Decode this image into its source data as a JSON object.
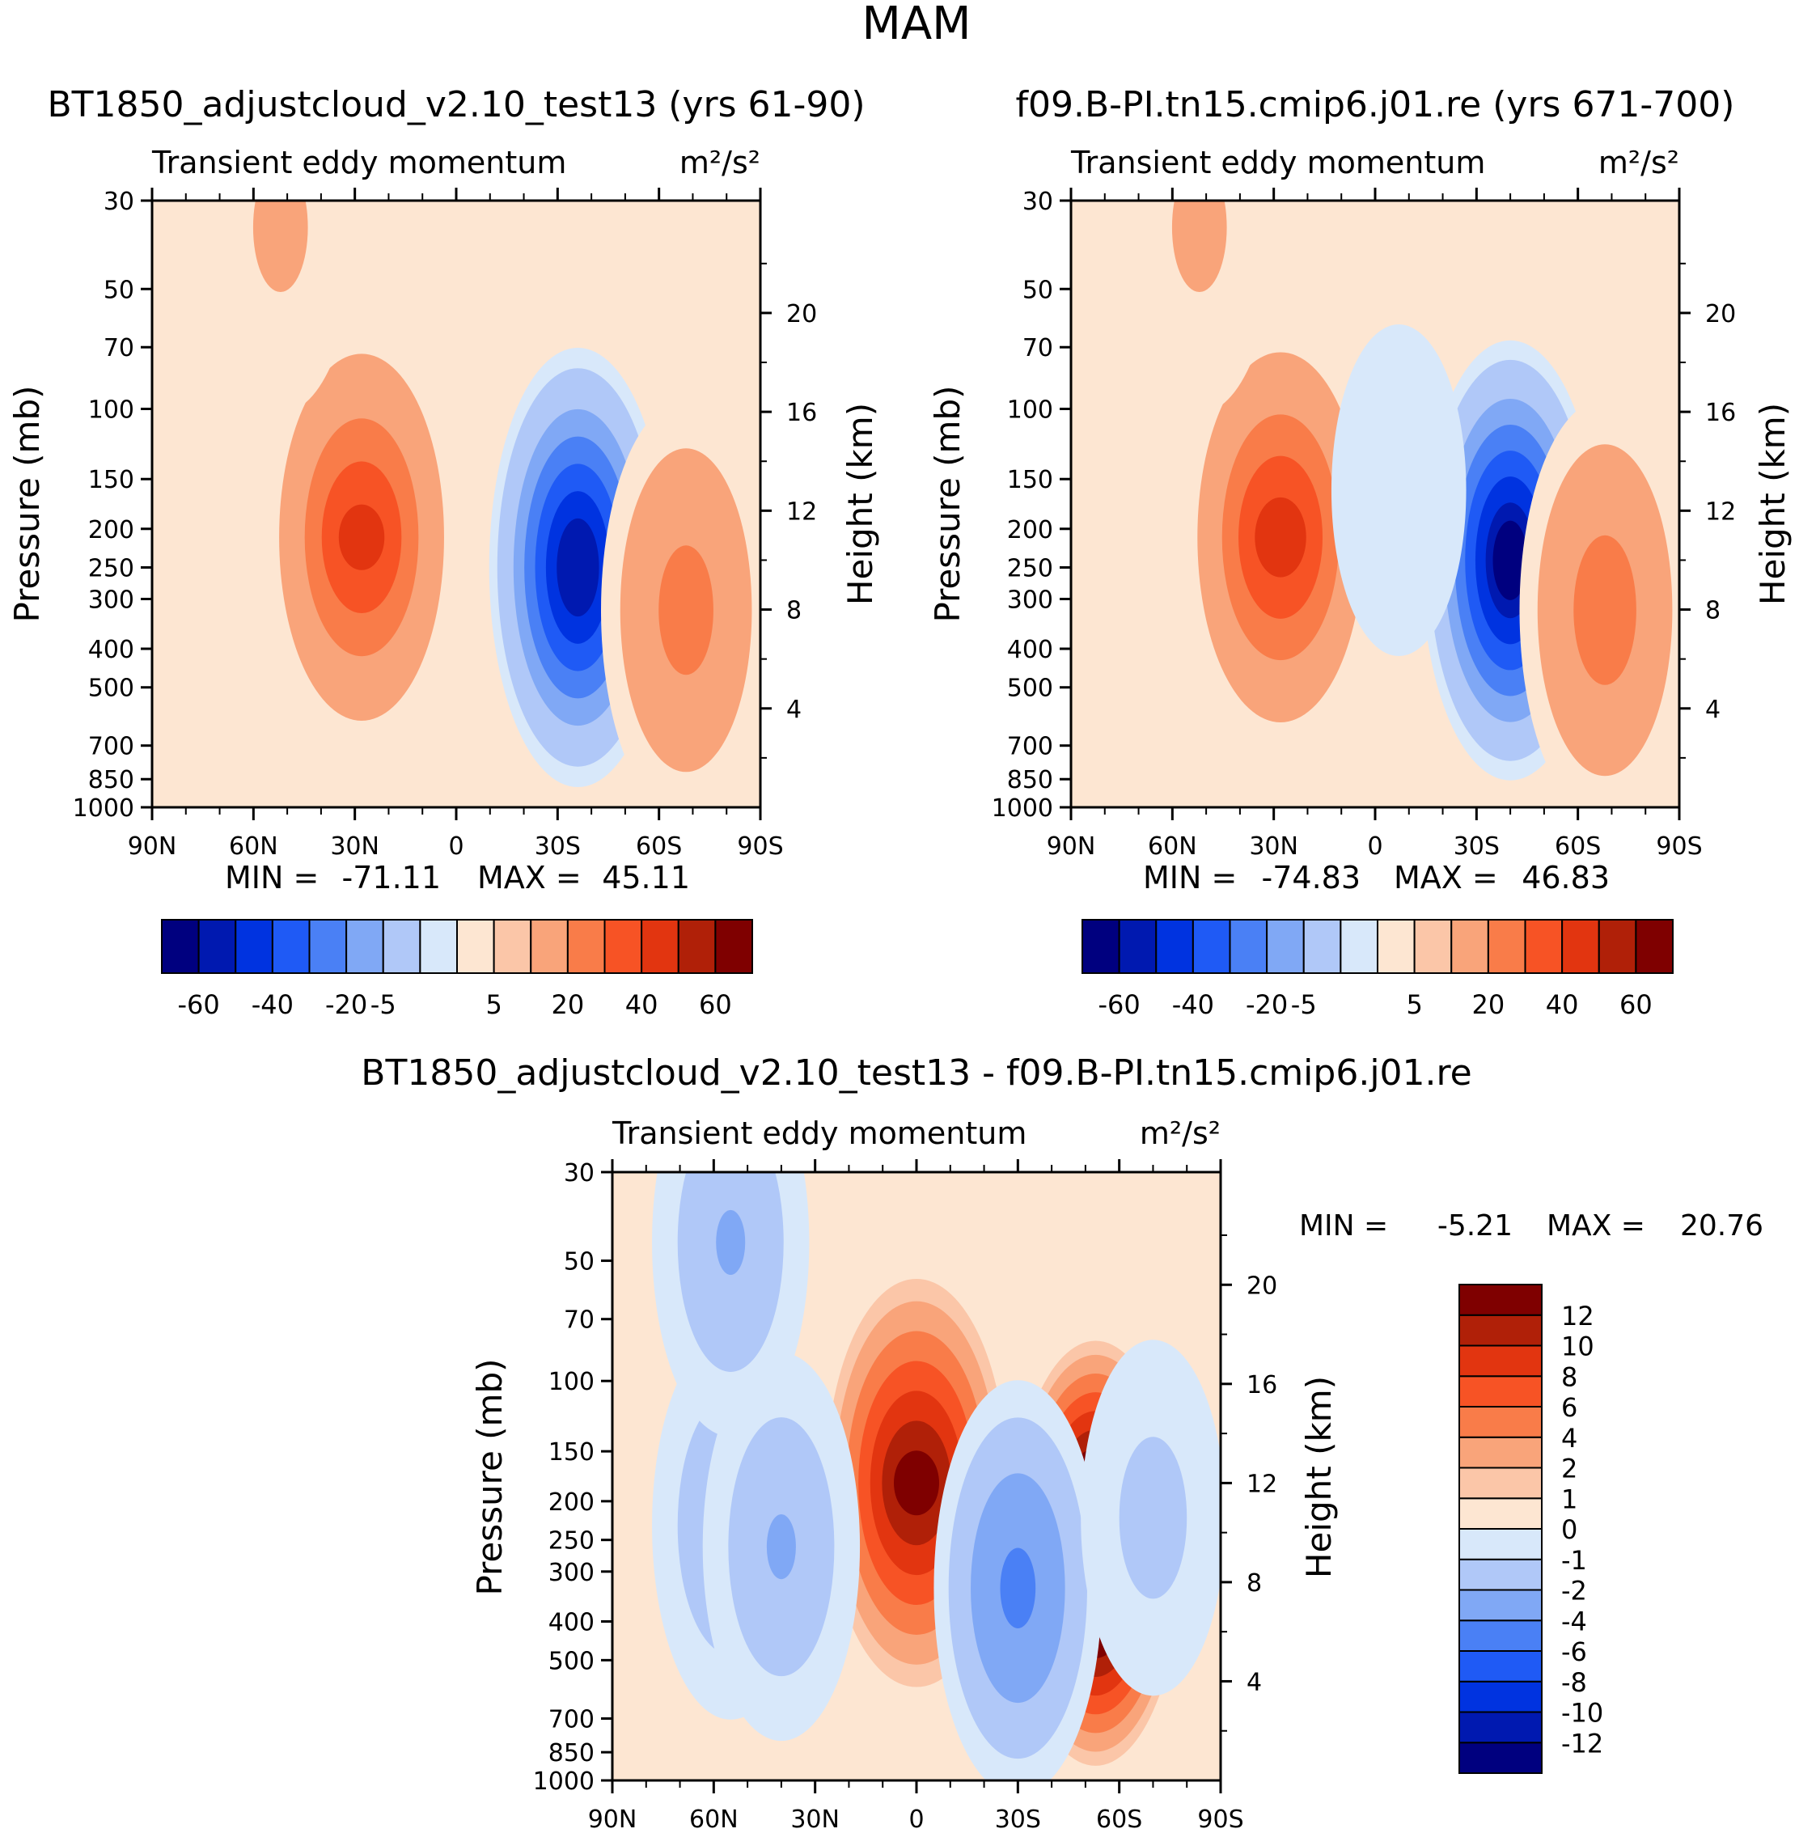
{
  "figure": {
    "season_title": "MAM"
  },
  "chart_data": [
    {
      "type": "contour",
      "title": "BT1850_adjustcloud_v2.10_test13 (yrs 61-90)",
      "subtitle_left": "Transient eddy momentum",
      "units": "m²/s²",
      "ylabel": "Pressure (mb)",
      "y2label": "Height (km)",
      "x_ticks": [
        "90N",
        "60N",
        "30N",
        "0",
        "30S",
        "60S",
        "90S"
      ],
      "x_values": [
        90,
        60,
        30,
        0,
        -30,
        -60,
        -90
      ],
      "y_ticks": [
        30,
        50,
        70,
        100,
        150,
        200,
        250,
        300,
        400,
        500,
        700,
        850,
        1000
      ],
      "y2_ticks": [
        20,
        16,
        12,
        8,
        4
      ],
      "ylim": [
        1000,
        30
      ],
      "stats": {
        "min_label": "MIN =",
        "min": "-71.11",
        "max_label": "MAX =",
        "max": "45.11"
      },
      "colorbar": {
        "orientation": "horizontal",
        "colors": [
          "#00007f",
          "#0019b0",
          "#0033e0",
          "#1f5af5",
          "#4a80f5",
          "#80a8f5",
          "#b0c8f8",
          "#d8e8fa",
          "#fde6d2",
          "#fbc6a8",
          "#f9a47a",
          "#f97c49",
          "#f75325",
          "#e23510",
          "#b02008",
          "#7f0000"
        ],
        "tick_labels": [
          "-60",
          "-40",
          "-20",
          "-5",
          "5",
          "20",
          "40",
          "60"
        ]
      },
      "features": [
        {
          "lat": 28,
          "p": 210,
          "value": 45.11
        },
        {
          "lat": -36,
          "p": 250,
          "value": -71.11
        },
        {
          "lat": -68,
          "p": 320,
          "value": 30
        },
        {
          "lat": 52,
          "p": 35,
          "value": 12
        }
      ]
    },
    {
      "type": "contour",
      "title": "f09.B-PI.tn15.cmip6.j01.re (yrs 671-700)",
      "subtitle_left": "Transient eddy momentum",
      "units": "m²/s²",
      "ylabel": "Pressure (mb)",
      "y2label": "Height (km)",
      "x_ticks": [
        "90N",
        "60N",
        "30N",
        "0",
        "30S",
        "60S",
        "90S"
      ],
      "x_values": [
        90,
        60,
        30,
        0,
        -30,
        -60,
        -90
      ],
      "y_ticks": [
        30,
        50,
        70,
        100,
        150,
        200,
        250,
        300,
        400,
        500,
        700,
        850,
        1000
      ],
      "y2_ticks": [
        20,
        16,
        12,
        8,
        4
      ],
      "ylim": [
        1000,
        30
      ],
      "stats": {
        "min_label": "MIN =",
        "min": "-74.83",
        "max_label": "MAX =",
        "max": "46.83"
      },
      "colorbar": {
        "orientation": "horizontal",
        "colors": [
          "#00007f",
          "#0019b0",
          "#0033e0",
          "#1f5af5",
          "#4a80f5",
          "#80a8f5",
          "#b0c8f8",
          "#d8e8fa",
          "#fde6d2",
          "#fbc6a8",
          "#f9a47a",
          "#f97c49",
          "#f75325",
          "#e23510",
          "#b02008",
          "#7f0000"
        ],
        "tick_labels": [
          "-60",
          "-40",
          "-20",
          "-5",
          "5",
          "20",
          "40",
          "60"
        ]
      },
      "features": [
        {
          "lat": 28,
          "p": 210,
          "value": 46.83
        },
        {
          "lat": -40,
          "p": 240,
          "value": -74.83
        },
        {
          "lat": -68,
          "p": 320,
          "value": 32
        },
        {
          "lat": -7,
          "p": 160,
          "value": -8
        },
        {
          "lat": 52,
          "p": 35,
          "value": 12
        }
      ]
    },
    {
      "type": "contour",
      "title": "BT1850_adjustcloud_v2.10_test13 - f09.B-PI.tn15.cmip6.j01.re",
      "subtitle_left": "Transient eddy momentum",
      "units": "m²/s²",
      "ylabel": "Pressure (mb)",
      "y2label": "Height (km)",
      "x_ticks": [
        "90N",
        "60N",
        "30N",
        "0",
        "30S",
        "60S",
        "90S"
      ],
      "x_values": [
        90,
        60,
        30,
        0,
        -30,
        -60,
        -90
      ],
      "y_ticks": [
        30,
        50,
        70,
        100,
        150,
        200,
        250,
        300,
        400,
        500,
        700,
        850,
        1000
      ],
      "y2_ticks": [
        20,
        16,
        12,
        8,
        4
      ],
      "ylim": [
        1000,
        30
      ],
      "stats": {
        "min_label": "MIN =",
        "min": "-5.21",
        "max_label": "MAX =",
        "max": "20.76"
      },
      "colorbar": {
        "orientation": "vertical",
        "colors": [
          "#00007f",
          "#0019b0",
          "#0033e0",
          "#1f5af5",
          "#4a80f5",
          "#80a8f5",
          "#b0c8f8",
          "#d8e8fa",
          "#fde6d2",
          "#fbc6a8",
          "#f9a47a",
          "#f97c49",
          "#f75325",
          "#e23510",
          "#b02008",
          "#7f0000"
        ],
        "tick_labels": [
          "-12",
          "-10",
          "-8",
          "-6",
          "-4",
          "-2",
          "-1",
          "0",
          "1",
          "2",
          "4",
          "6",
          "8",
          "10",
          "12"
        ]
      },
      "features": [
        {
          "lat": 0,
          "p": 180,
          "value": 13
        },
        {
          "lat": -53,
          "p": 270,
          "value": 20.76
        },
        {
          "lat": -30,
          "p": 330,
          "value": -5.21
        },
        {
          "lat": 55,
          "p": 230,
          "value": -3
        },
        {
          "lat": 40,
          "p": 260,
          "value": -3
        },
        {
          "lat": 55,
          "p": 45,
          "value": -3
        },
        {
          "lat": -70,
          "p": 220,
          "value": -2
        }
      ]
    }
  ]
}
